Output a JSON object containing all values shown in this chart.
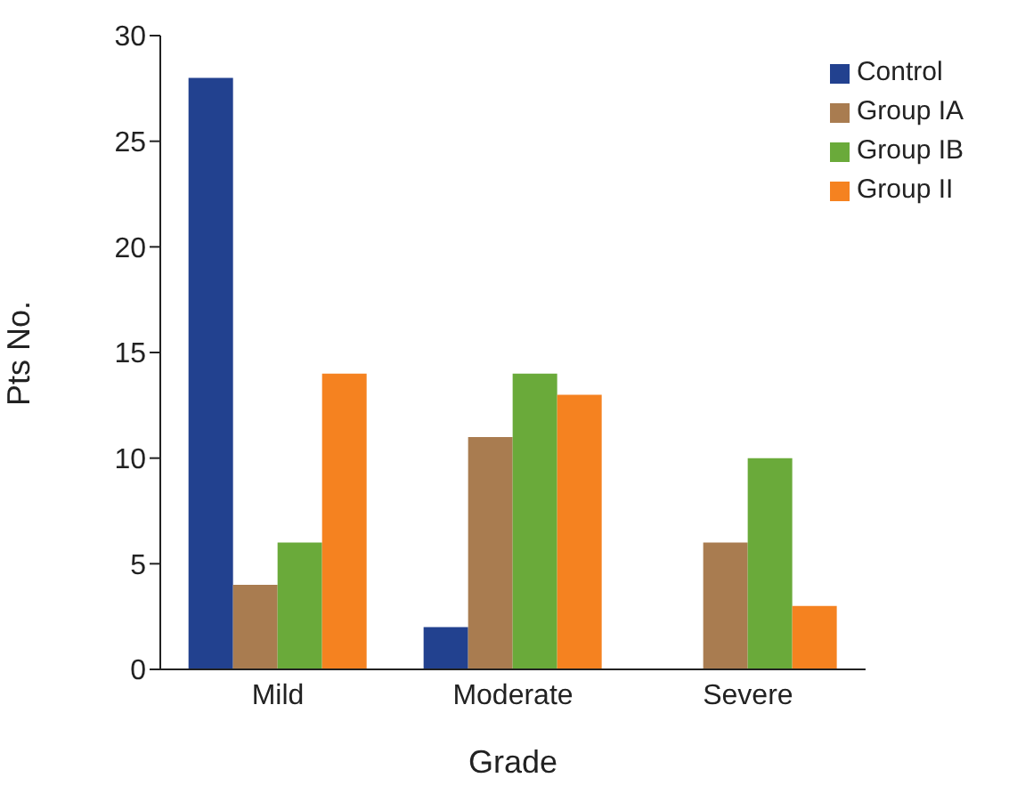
{
  "chart_data": {
    "type": "bar",
    "xlabel": "Grade",
    "ylabel": "Pts No.",
    "categories": [
      "Mild",
      "Moderate",
      "Severe"
    ],
    "series": [
      {
        "name": "Control",
        "color": "#22418f",
        "values": [
          28,
          2,
          0
        ]
      },
      {
        "name": "Group IA",
        "color": "#a97c50",
        "values": [
          4,
          11,
          6
        ]
      },
      {
        "name": "Group IB",
        "color": "#6aaa3a",
        "values": [
          6,
          14,
          10
        ]
      },
      {
        "name": "Group II",
        "color": "#f58220",
        "values": [
          14,
          13,
          3
        ]
      }
    ],
    "ylim": [
      0,
      30
    ],
    "yticks": [
      0,
      5,
      10,
      15,
      20,
      25,
      30
    ],
    "grid": false,
    "legend": "top right"
  }
}
